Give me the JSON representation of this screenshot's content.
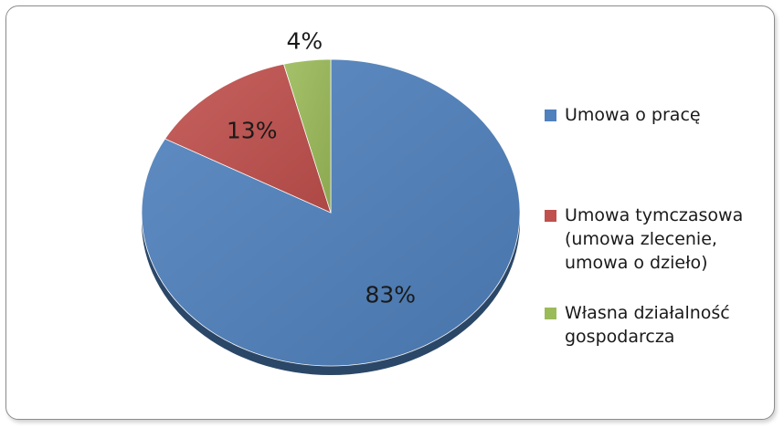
{
  "chart_data": {
    "type": "pie",
    "categories": [
      "Umowa o pracę",
      "Umowa tymczasowa\n(umowa zlecenie,\numowa o dzieło)",
      "Własna działalność\ngospodarcza"
    ],
    "values": [
      83,
      13,
      4
    ],
    "data_labels": [
      "83%",
      "13%",
      "4%"
    ],
    "colors": [
      "#4F81BD",
      "#C0504D",
      "#9BBB59"
    ],
    "legend_position": "right",
    "title": ""
  }
}
